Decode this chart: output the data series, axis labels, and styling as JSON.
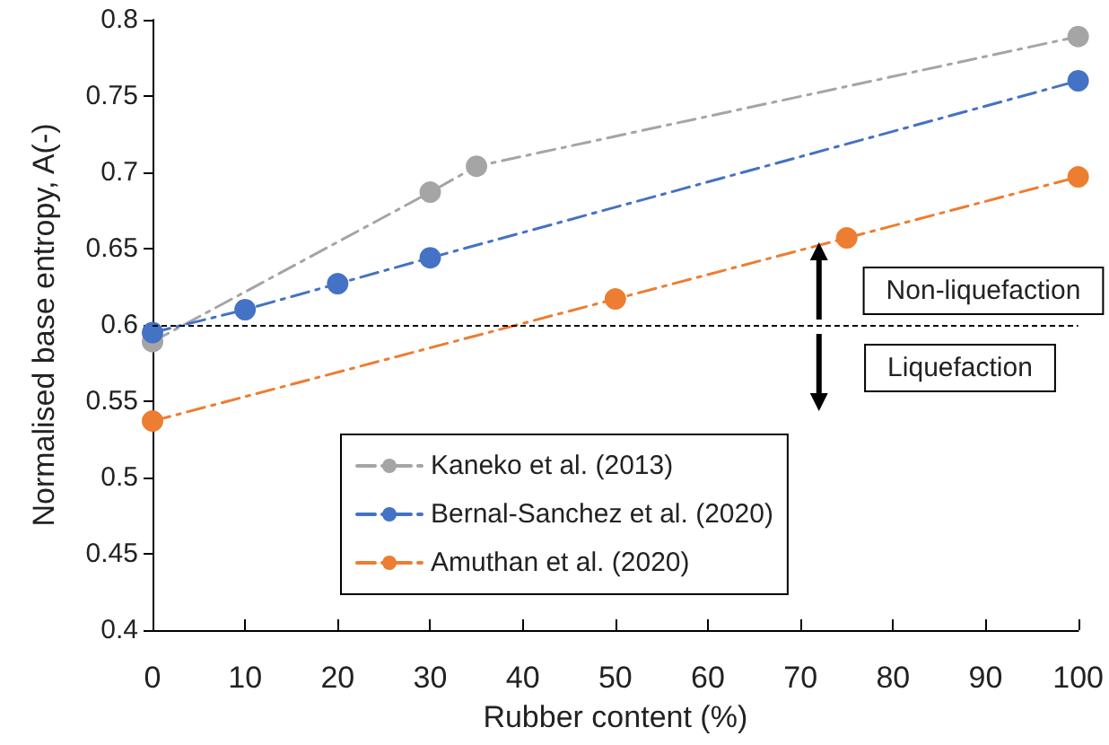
{
  "chart_data": {
    "type": "line",
    "xlabel": "Rubber content (%)",
    "ylabel": "Normalised base entropy, A(-)",
    "xlim": [
      0,
      100
    ],
    "xticks": [
      0,
      10,
      20,
      30,
      40,
      50,
      60,
      70,
      80,
      90,
      100
    ],
    "ylim": [
      0.4,
      0.8
    ],
    "yticks": [
      0.4,
      0.45,
      0.5,
      0.55,
      0.6,
      0.65,
      0.7,
      0.75,
      0.8
    ],
    "series": [
      {
        "name": "Kaneko et al. (2013)",
        "color": "#a5a5a5",
        "x": [
          0,
          30,
          35,
          100
        ],
        "values": [
          0.589,
          0.687,
          0.704,
          0.789
        ]
      },
      {
        "name": "Bernal-Sanchez et al. (2020)",
        "color": "#4472c4",
        "x": [
          0,
          10,
          20,
          30,
          100
        ],
        "values": [
          0.595,
          0.61,
          0.627,
          0.644,
          0.76
        ]
      },
      {
        "name": "Amuthan et al. (2020)",
        "color": "#ed7d31",
        "x": [
          0,
          50,
          75,
          100
        ],
        "values": [
          0.537,
          0.617,
          0.657,
          0.697
        ]
      }
    ],
    "ref_lines": [
      {
        "axis": "y",
        "value": 0.6,
        "color": "#000000",
        "line_style": "dashed"
      }
    ],
    "annotations": [
      "Non-liquefaction",
      "Liquefaction"
    ],
    "marker": "circle",
    "line_style": "dashed",
    "grid": false,
    "legend": "bottom"
  }
}
